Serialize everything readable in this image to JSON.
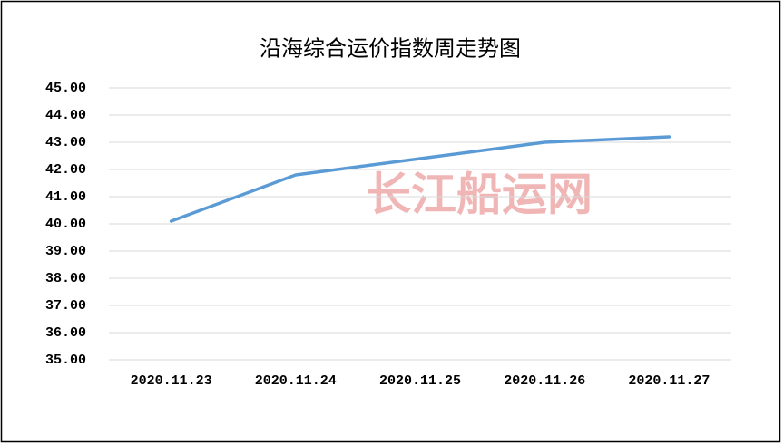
{
  "chart_data": {
    "type": "line",
    "title": "沿海综合运价指数周走势图",
    "watermark": "长江船运网",
    "categories": [
      "2020.11.23",
      "2020.11.24",
      "2020.11.25",
      "2020.11.26",
      "2020.11.27"
    ],
    "series": [
      {
        "color": "#5b9bd5",
        "values": [
          40.1,
          41.8,
          42.4,
          43.0,
          43.2
        ]
      }
    ],
    "ylim": [
      35,
      45
    ],
    "yticks": [
      {
        "value": 35,
        "label": "35.00"
      },
      {
        "value": 36,
        "label": "36.00"
      },
      {
        "value": 37,
        "label": "37.00"
      },
      {
        "value": 38,
        "label": "38.00"
      },
      {
        "value": 39,
        "label": "39.00"
      },
      {
        "value": 40,
        "label": "40.00"
      },
      {
        "value": 41,
        "label": "41.00"
      },
      {
        "value": 42,
        "label": "42.00"
      },
      {
        "value": 43,
        "label": "43.00"
      },
      {
        "value": 44,
        "label": "44.00"
      },
      {
        "value": 45,
        "label": "45.00"
      }
    ],
    "grid": true
  }
}
